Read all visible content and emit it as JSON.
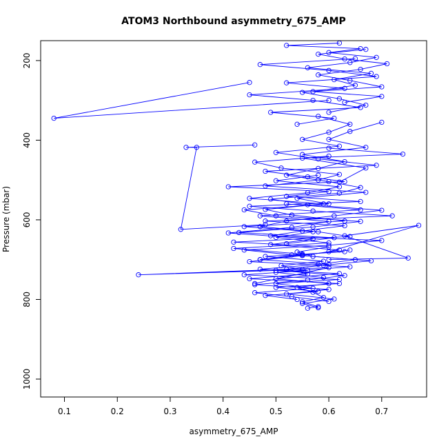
{
  "chart_data": {
    "type": "line",
    "title": "ATOM3 Northbound asymmetry_675_AMP",
    "xlabel": "asymmetry_675_AMP",
    "ylabel": "Pressure (mbar)",
    "xlim": [
      0.055,
      0.785
    ],
    "ylim": [
      1045,
      150
    ],
    "y_reversed": true,
    "grid": false,
    "legend": "none",
    "xticks": [
      0.1,
      0.2,
      0.3,
      0.4,
      0.5,
      0.6,
      0.7
    ],
    "xtick_labels": [
      "0.1",
      "0.2",
      "0.3",
      "0.4",
      "0.5",
      "0.6",
      "0.7"
    ],
    "yticks": [
      200,
      400,
      600,
      800,
      1000
    ],
    "ytick_labels": [
      "200",
      "400",
      "600",
      "800",
      "1000"
    ],
    "series_color": "#0000ff",
    "marker": "open-circle",
    "series": [
      {
        "profile": "ascent-1",
        "x": [
          0.56,
          0.58,
          0.55,
          0.59,
          0.57,
          0.54,
          0.6,
          0.5,
          0.62,
          0.47,
          0.58,
          0.65,
          0.53,
          0.44,
          0.6,
          0.7,
          0.49,
          0.55,
          0.63,
          0.48,
          0.72,
          0.57,
          0.45,
          0.66,
          0.52,
          0.6,
          0.41,
          0.63,
          0.56,
          0.48,
          0.69,
          0.58,
          0.5,
          0.62,
          0.55,
          0.6,
          0.64,
          0.58
        ],
        "y": [
          822,
          818,
          806,
          795,
          782,
          770,
          760,
          748,
          735,
          724,
          712,
          700,
          688,
          676,
          664,
          652,
          640,
          628,
          615,
          603,
          590,
          578,
          566,
          554,
          541,
          529,
          517,
          504,
          492,
          478,
          463,
          447,
          431,
          415,
          398,
          380,
          360,
          340
        ]
      },
      {
        "profile": "ascent-2",
        "x": [
          0.58,
          0.55,
          0.61,
          0.52,
          0.6,
          0.46,
          0.56,
          0.63,
          0.5,
          0.59,
          0.68,
          0.57,
          0.54,
          0.6,
          0.42,
          0.64,
          0.58,
          0.47,
          0.52,
          0.61,
          0.7,
          0.56,
          0.49,
          0.62,
          0.66,
          0.6,
          0.52,
          0.58,
          0.63,
          0.55,
          0.67,
          0.6,
          0.64,
          0.7
        ],
        "y": [
          821,
          810,
          799,
          786,
          775,
          763,
          751,
          740,
          727,
          714,
          703,
          692,
          681,
          668,
          656,
          642,
          630,
          617,
          603,
          590,
          576,
          562,
          548,
          533,
          519,
          504,
          488,
          471,
          454,
          436,
          418,
          398,
          378,
          355
        ]
      },
      {
        "profile": "outlier-segment-a",
        "x": [
          0.45,
          0.08,
          0.6
        ],
        "y": [
          255,
          345,
          300
        ]
      },
      {
        "profile": "outlier-segment-b",
        "x": [
          0.55,
          0.24,
          0.6,
          0.46
        ],
        "y": [
          725,
          738,
          720,
          760
        ]
      },
      {
        "profile": "outlier-segment-c",
        "x": [
          0.46,
          0.33,
          0.35,
          0.32,
          0.48
        ],
        "y": [
          412,
          418,
          418,
          624,
          612
        ]
      },
      {
        "profile": "outlier-segment-d",
        "x": [
          0.6,
          0.77,
          0.63,
          0.75,
          0.6
        ],
        "y": [
          680,
          614,
          640,
          696,
          700
        ]
      },
      {
        "profile": "outlier-segment-e",
        "x": [
          0.6,
          0.74,
          0.55,
          0.67,
          0.62
        ],
        "y": [
          420,
          435,
          445,
          470,
          505
        ]
      },
      {
        "profile": "upper-a",
        "x": [
          0.63,
          0.7,
          0.57,
          0.65,
          0.61,
          0.68,
          0.56,
          0.64,
          0.69,
          0.6,
          0.66,
          0.52,
          0.62
        ],
        "y": [
          305,
          290,
          278,
          262,
          248,
          232,
          218,
          205,
          192,
          180,
          170,
          162,
          156
        ]
      },
      {
        "profile": "upper-b",
        "x": [
          0.6,
          0.67,
          0.62,
          0.55,
          0.7,
          0.64,
          0.58,
          0.66,
          0.71,
          0.63,
          0.58,
          0.67
        ],
        "y": [
          330,
          312,
          296,
          280,
          266,
          250,
          236,
          222,
          208,
          196,
          184,
          172
        ]
      },
      {
        "profile": "upper-c",
        "x": [
          0.54,
          0.61,
          0.49,
          0.66,
          0.57,
          0.45,
          0.63,
          0.52,
          0.69,
          0.6,
          0.47,
          0.65
        ],
        "y": [
          360,
          345,
          330,
          318,
          300,
          286,
          270,
          256,
          240,
          225,
          210,
          195
        ]
      },
      {
        "profile": "mid-a",
        "x": [
          0.52,
          0.61,
          0.43,
          0.57,
          0.66,
          0.5,
          0.44,
          0.6,
          0.54,
          0.67,
          0.48,
          0.58,
          0.62,
          0.51,
          0.46,
          0.6
        ],
        "y": [
          660,
          645,
          632,
          618,
          604,
          590,
          575,
          560,
          546,
          531,
          515,
          500,
          486,
          470,
          455,
          440
        ]
      },
      {
        "profile": "mid-b",
        "x": [
          0.47,
          0.55,
          0.42,
          0.6,
          0.5,
          0.57,
          0.44,
          0.63,
          0.53,
          0.48,
          0.59,
          0.45,
          0.56,
          0.62,
          0.5,
          0.58
        ],
        "y": [
          700,
          686,
          672,
          658,
          644,
          630,
          617,
          603,
          588,
          574,
          560,
          546,
          532,
          517,
          502,
          488
        ]
      },
      {
        "profile": "mid-c",
        "x": [
          0.59,
          0.5,
          0.64,
          0.45,
          0.55,
          0.62,
          0.49,
          0.57,
          0.41,
          0.53,
          0.6,
          0.47,
          0.66,
          0.52
        ],
        "y": [
          745,
          732,
          718,
          705,
          690,
          676,
          662,
          648,
          633,
          619,
          604,
          590,
          575,
          560
        ]
      },
      {
        "profile": "low-a",
        "x": [
          0.54,
          0.48,
          0.58,
          0.5,
          0.62,
          0.45,
          0.56,
          0.52,
          0.6,
          0.47,
          0.55,
          0.64
        ],
        "y": [
          800,
          790,
          780,
          770,
          760,
          748,
          736,
          724,
          712,
          700,
          688,
          676
        ]
      },
      {
        "profile": "low-b",
        "x": [
          0.6,
          0.53,
          0.46,
          0.57,
          0.5,
          0.62,
          0.44,
          0.56,
          0.51,
          0.59,
          0.48,
          0.63
        ],
        "y": [
          805,
          793,
          783,
          772,
          760,
          750,
          738,
          727,
          715,
          704,
          692,
          680
        ]
      }
    ]
  }
}
